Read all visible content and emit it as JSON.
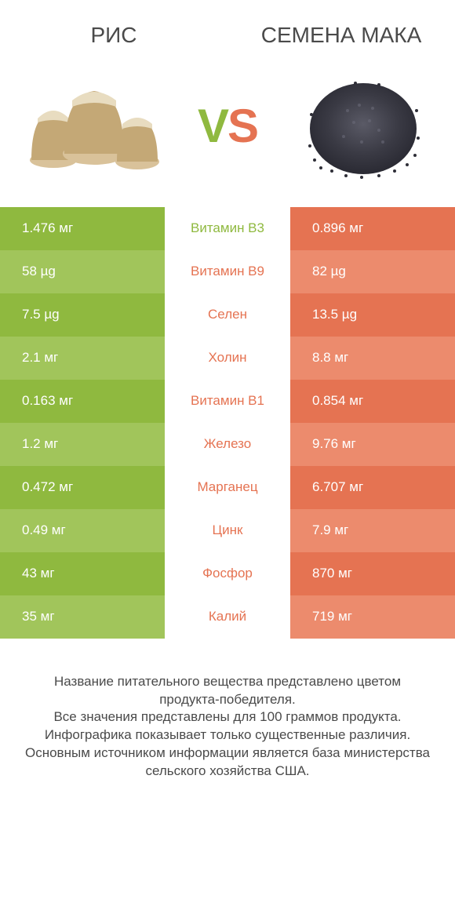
{
  "header": {
    "left": "РИС",
    "right": "СЕМЕНА МАКА"
  },
  "vs": {
    "v": "V",
    "s": "S"
  },
  "colors": {
    "left_odd": "#8fb93f",
    "left_even": "#a1c55b",
    "right_odd": "#e57352",
    "right_even": "#ec8b6d",
    "mid_left": "#8fb93f",
    "mid_right": "#e57352",
    "text_white": "#ffffff"
  },
  "rows": [
    {
      "left": "1.476 мг",
      "mid": "Витамин B3",
      "right": "0.896 мг",
      "winner": "left"
    },
    {
      "left": "58 µg",
      "mid": "Витамин B9",
      "right": "82 µg",
      "winner": "right"
    },
    {
      "left": "7.5 µg",
      "mid": "Селен",
      "right": "13.5 µg",
      "winner": "right"
    },
    {
      "left": "2.1 мг",
      "mid": "Холин",
      "right": "8.8 мг",
      "winner": "right"
    },
    {
      "left": "0.163 мг",
      "mid": "Витамин B1",
      "right": "0.854 мг",
      "winner": "right"
    },
    {
      "left": "1.2 мг",
      "mid": "Железо",
      "right": "9.76 мг",
      "winner": "right"
    },
    {
      "left": "0.472 мг",
      "mid": "Марганец",
      "right": "6.707 мг",
      "winner": "right"
    },
    {
      "left": "0.49 мг",
      "mid": "Цинк",
      "right": "7.9 мг",
      "winner": "right"
    },
    {
      "left": "43 мг",
      "mid": "Фосфор",
      "right": "870 мг",
      "winner": "right"
    },
    {
      "left": "35 мг",
      "mid": "Калий",
      "right": "719 мг",
      "winner": "right"
    }
  ],
  "footer": {
    "line1": "Название питательного вещества представлено цветом продукта-победителя.",
    "line2": "Все значения представлены для 100 граммов продукта.",
    "line3": "Инфографика показывает только существенные различия.",
    "line4": "Основным источником информации является база министерства сельского хозяйства США."
  }
}
